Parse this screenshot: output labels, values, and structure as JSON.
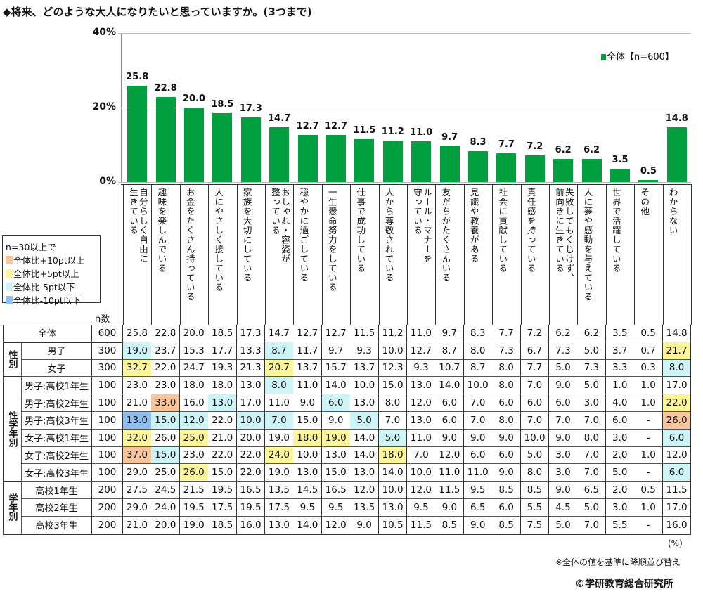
{
  "title": "◆将来、どのような大人になりたいと思っていますか。(3つまで)",
  "colors": {
    "bar": "#00a040",
    "plus10": "#f8c49c",
    "plus5": "#fdf59a",
    "minus5": "#cdf5f8",
    "minus10": "#8fbef0"
  },
  "highlight_legend": {
    "heading": "n=30以上で",
    "items": [
      {
        "label": "全体比+10pt以上",
        "color": "#f8c49c"
      },
      {
        "label": "全体比+5pt以上",
        "color": "#fdf59a"
      },
      {
        "label": "全体比-5pt以下",
        "color": "#cdf5f8"
      },
      {
        "label": "全体比-10pt以下",
        "color": "#8fbef0"
      }
    ]
  },
  "chart_data": {
    "type": "bar",
    "ylim": [
      0,
      40
    ],
    "yticks": [
      "0%",
      "20%",
      "40%"
    ],
    "grid": true,
    "legend": "top-right",
    "series": [
      {
        "name": "全体【n=600】",
        "values": [
          25.8,
          22.8,
          20.0,
          18.5,
          17.3,
          14.7,
          12.7,
          12.7,
          11.5,
          11.2,
          11.0,
          9.7,
          8.3,
          7.7,
          7.2,
          6.2,
          6.2,
          3.5,
          0.5,
          14.8
        ]
      }
    ],
    "categories": [
      "自分らしく自由に\n生きている",
      "趣味を楽しんでいる",
      "お金をたくさん持っている",
      "人にやさしく接している",
      "家族を大切にしている",
      "おしゃれ・容姿が\n整っている",
      "穏やかに過ごしている",
      "一生懸命努力をしている",
      "仕事で成功している",
      "人から尊敬されている",
      "ルール・マナーを\n守っている",
      "友だちがたくさんいる",
      "見識や教養がある",
      "社会に貢献している",
      "責任感を持っている",
      "失敗してもくじけず、\n前向きに生きている",
      "人に夢や感動を与えている",
      "世界で活躍している",
      "その他",
      "わからない"
    ]
  },
  "table": {
    "n_header": "n数",
    "groups": [
      {
        "label": "",
        "rows": [
          0
        ]
      },
      {
        "label": "性別",
        "rows": [
          1,
          2
        ]
      },
      {
        "label": "性学年別",
        "rows": [
          3,
          4,
          5,
          6,
          7,
          8
        ]
      },
      {
        "label": "学年別",
        "rows": [
          9,
          10,
          11
        ]
      }
    ],
    "rows": [
      {
        "label": "全体",
        "n": "600",
        "values": [
          "25.8",
          "22.8",
          "20.0",
          "18.5",
          "17.3",
          "14.7",
          "12.7",
          "12.7",
          "11.5",
          "11.2",
          "11.0",
          "9.7",
          "8.3",
          "7.7",
          "7.2",
          "6.2",
          "6.2",
          "3.5",
          "0.5",
          "14.8"
        ]
      },
      {
        "label": "男子",
        "n": "300",
        "values": [
          "19.0",
          "23.7",
          "15.3",
          "17.7",
          "13.3",
          "8.7",
          "11.7",
          "9.7",
          "9.3",
          "10.0",
          "12.7",
          "8.7",
          "8.0",
          "7.3",
          "6.7",
          "7.3",
          "5.0",
          "3.7",
          "0.7",
          "21.7"
        ]
      },
      {
        "label": "女子",
        "n": "300",
        "values": [
          "32.7",
          "22.0",
          "24.7",
          "19.3",
          "21.3",
          "20.7",
          "13.7",
          "15.7",
          "13.7",
          "12.3",
          "9.3",
          "10.7",
          "8.7",
          "8.0",
          "7.7",
          "5.0",
          "7.3",
          "3.3",
          "0.3",
          "8.0"
        ]
      },
      {
        "label": "男子:高校1年生",
        "n": "100",
        "values": [
          "23.0",
          "23.0",
          "18.0",
          "18.0",
          "13.0",
          "8.0",
          "11.0",
          "14.0",
          "10.0",
          "15.0",
          "13.0",
          "14.0",
          "10.0",
          "8.0",
          "7.0",
          "9.0",
          "5.0",
          "1.0",
          "1.0",
          "17.0"
        ]
      },
      {
        "label": "男子:高校2年生",
        "n": "100",
        "values": [
          "21.0",
          "33.0",
          "16.0",
          "13.0",
          "17.0",
          "11.0",
          "9.0",
          "6.0",
          "13.0",
          "8.0",
          "12.0",
          "6.0",
          "7.0",
          "6.0",
          "6.0",
          "6.0",
          "3.0",
          "4.0",
          "1.0",
          "22.0"
        ]
      },
      {
        "label": "男子:高校3年生",
        "n": "100",
        "values": [
          "13.0",
          "15.0",
          "12.0",
          "22.0",
          "10.0",
          "7.0",
          "15.0",
          "9.0",
          "5.0",
          "7.0",
          "13.0",
          "6.0",
          "7.0",
          "8.0",
          "7.0",
          "7.0",
          "7.0",
          "6.0",
          "-",
          "26.0"
        ]
      },
      {
        "label": "女子:高校1年生",
        "n": "100",
        "values": [
          "32.0",
          "26.0",
          "25.0",
          "21.0",
          "20.0",
          "19.0",
          "18.0",
          "19.0",
          "14.0",
          "5.0",
          "11.0",
          "9.0",
          "9.0",
          "9.0",
          "10.0",
          "9.0",
          "8.0",
          "3.0",
          "-",
          "6.0"
        ]
      },
      {
        "label": "女子:高校2年生",
        "n": "100",
        "values": [
          "37.0",
          "15.0",
          "23.0",
          "22.0",
          "22.0",
          "24.0",
          "10.0",
          "13.0",
          "14.0",
          "18.0",
          "7.0",
          "12.0",
          "6.0",
          "6.0",
          "5.0",
          "3.0",
          "7.0",
          "2.0",
          "1.0",
          "12.0"
        ]
      },
      {
        "label": "女子:高校3年生",
        "n": "100",
        "values": [
          "29.0",
          "25.0",
          "26.0",
          "15.0",
          "22.0",
          "19.0",
          "13.0",
          "15.0",
          "13.0",
          "14.0",
          "10.0",
          "11.0",
          "11.0",
          "9.0",
          "8.0",
          "3.0",
          "7.0",
          "5.0",
          "-",
          "6.0"
        ]
      },
      {
        "label": "高校1年生",
        "n": "200",
        "values": [
          "27.5",
          "24.5",
          "21.5",
          "19.5",
          "16.5",
          "13.5",
          "14.5",
          "16.5",
          "12.0",
          "10.0",
          "12.0",
          "11.5",
          "9.5",
          "8.5",
          "8.5",
          "9.0",
          "6.5",
          "2.0",
          "0.5",
          "11.5"
        ]
      },
      {
        "label": "高校2年生",
        "n": "200",
        "values": [
          "29.0",
          "24.0",
          "19.5",
          "17.5",
          "19.5",
          "17.5",
          "9.5",
          "9.5",
          "13.5",
          "13.0",
          "9.5",
          "9.0",
          "6.5",
          "6.0",
          "5.5",
          "4.5",
          "5.0",
          "3.0",
          "1.0",
          "17.0"
        ]
      },
      {
        "label": "高校3年生",
        "n": "200",
        "values": [
          "21.0",
          "20.0",
          "19.0",
          "18.5",
          "16.0",
          "13.0",
          "14.0",
          "12.0",
          "9.0",
          "10.5",
          "11.5",
          "8.5",
          "9.0",
          "8.5",
          "7.5",
          "5.0",
          "7.0",
          "5.5",
          "-",
          "16.0"
        ]
      }
    ]
  },
  "footer": {
    "unit": "(%)",
    "note": "※全体の値を基準に降順並び替え",
    "copyright": "©学研教育総合研究所"
  }
}
